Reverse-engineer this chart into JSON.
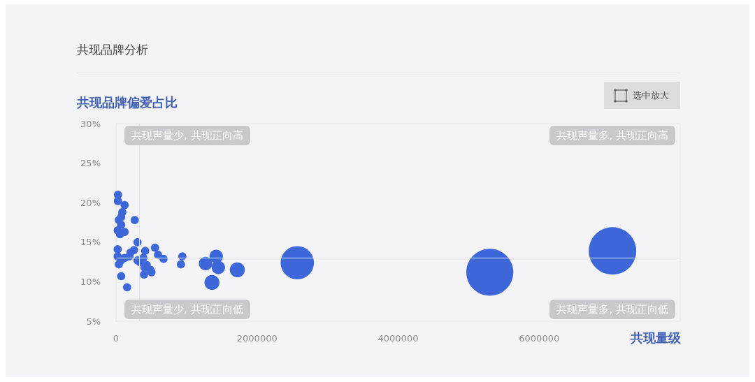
{
  "chart_data": {
    "type": "bubble",
    "title": "共现品牌分析",
    "ylabel": "共现品牌偏爱占比",
    "xlabel": "共现量级",
    "annotations": [
      "共现声量少, 共现正向高",
      "共现声量多, 共现正向高",
      "共现声量少, 共现正向低",
      "共现声量多, 共现正向低",
      "选中放大"
    ],
    "series": [
      {
        "color": "#3d67d9",
        "x": [
          27000,
          27000,
          122000,
          89000,
          73000,
          40000,
          265000,
          73000,
          23000,
          122000,
          56000,
          304000,
          23000,
          23000,
          40000,
          122000,
          205000,
          255000,
          73000,
          156000,
          413000,
          552000,
          595000,
          674000,
          337000,
          387000,
          403000,
          486000,
          503000,
          397000,
          436000,
          304000,
          188000,
          73000,
          940000,
          920000,
          1270000,
          1420000,
          1450000,
          1360000,
          1720000,
          2570000,
          5300000,
          7040000
        ],
        "values": [
          21.0,
          20.2,
          19.7,
          18.8,
          18.2,
          17.8,
          17.8,
          17.2,
          16.5,
          16.3,
          16.0,
          15.0,
          14.1,
          13.2,
          12.2,
          13.0,
          13.7,
          14.0,
          10.7,
          9.3,
          13.9,
          14.3,
          13.4,
          12.9,
          12.5,
          13.0,
          11.8,
          11.5,
          11.2,
          10.9,
          12.1,
          12.7,
          13.2,
          12.7,
          13.2,
          12.2,
          12.3,
          13.2,
          11.8,
          9.9,
          11.5,
          12.4,
          11.2,
          13.9
        ],
        "sizes": [
          0.03,
          0.03,
          0.03,
          0.03,
          0.03,
          0.03,
          0.03,
          0.03,
          0.03,
          0.03,
          0.03,
          0.03,
          0.03,
          0.03,
          0.03,
          0.03,
          0.03,
          0.03,
          0.03,
          0.03,
          0.03,
          0.03,
          0.03,
          0.03,
          0.03,
          0.03,
          0.03,
          0.03,
          0.03,
          0.03,
          0.03,
          0.03,
          0.03,
          0.03,
          0.03,
          0.03,
          0.08,
          0.08,
          0.08,
          0.1,
          0.1,
          0.49,
          0.98,
          1
        ]
      }
    ],
    "xlim": [
      0,
      8000000
    ],
    "xticks": [
      0,
      2000000,
      4000000,
      6000000
    ],
    "ylim": [
      5,
      30
    ],
    "yticks": [
      {
        "value": 5,
        "label": "5%"
      },
      {
        "value": 10,
        "label": "10%"
      },
      {
        "value": 15,
        "label": "15%"
      },
      {
        "value": 20,
        "label": "20%"
      },
      {
        "value": 25,
        "label": "25%"
      },
      {
        "value": 30,
        "label": "30%"
      }
    ],
    "ref_lines": [
      {
        "axis": "x",
        "value": 330000,
        "color": "#e2e2e6"
      },
      {
        "axis": "y",
        "value": 13,
        "color": "#e2e2e6"
      }
    ],
    "grid": false
  }
}
